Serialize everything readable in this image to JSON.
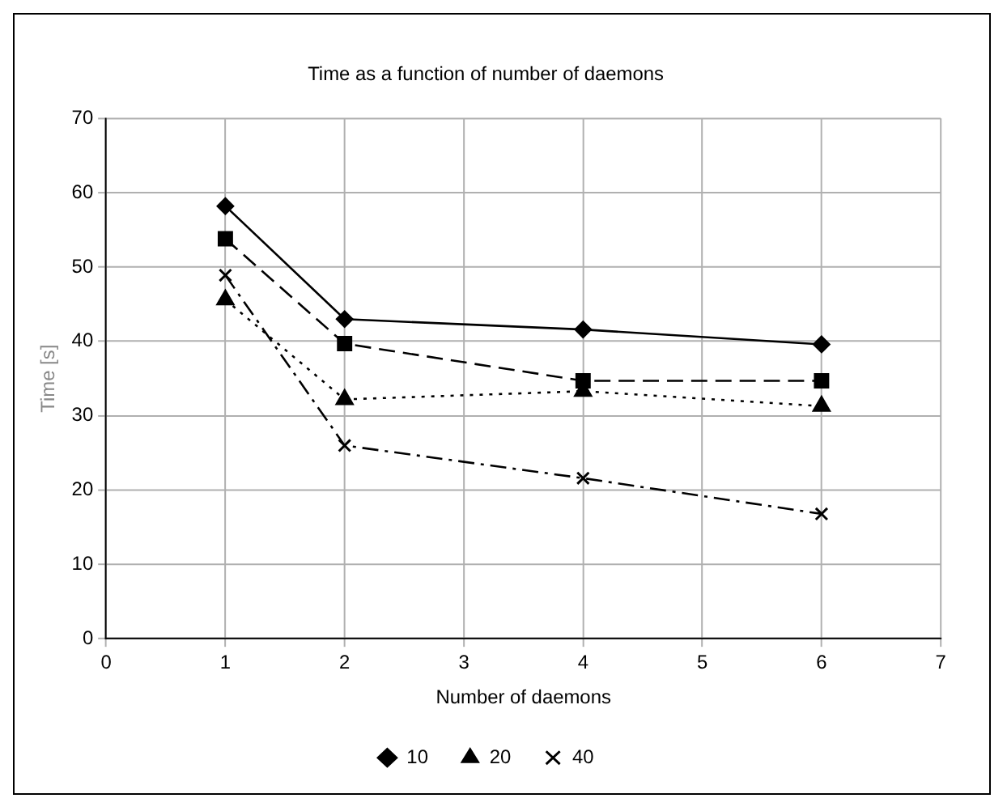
{
  "chart_data": {
    "type": "line",
    "title": "Time as a function of number of daemons",
    "xlabel": "Number of daemons",
    "ylabel": "Time [s]",
    "x": [
      1,
      2,
      4,
      6
    ],
    "series": [
      {
        "name": "10",
        "color": "#000000",
        "values": [
          58.2,
          43,
          41.6,
          39.6
        ],
        "marker": "diamond",
        "line_style": "solid"
      },
      {
        "color": "#000000",
        "values": [
          53.8,
          39.7,
          34.7,
          34.7
        ],
        "marker": "square",
        "line_style": "dashed"
      },
      {
        "name": "20",
        "color": "#000000",
        "values": [
          45.6,
          32.2,
          33.3,
          31.3
        ],
        "marker": "triangle",
        "line_style": "dotted"
      },
      {
        "name": "40",
        "color": "#000000",
        "values": [
          48.9,
          26,
          21.6,
          16.8
        ],
        "marker": "cross",
        "line_style": "dashdot"
      }
    ],
    "xlim": [
      0,
      7
    ],
    "xticks": [
      0,
      1,
      2,
      3,
      4,
      5,
      6,
      7
    ],
    "ylim": [
      0,
      70
    ],
    "yticks": [
      0,
      10,
      20,
      30,
      40,
      50,
      60,
      70
    ],
    "grid": true,
    "legend": "bottom"
  }
}
